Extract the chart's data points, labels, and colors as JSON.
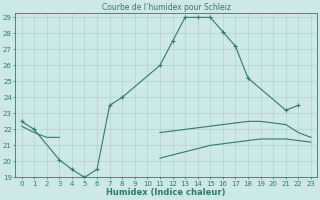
{
  "title": "Courbe de l’humidex pour Schleiz",
  "xlabel": "Humidex (Indice chaleur)",
  "line_color": "#2d7a6e",
  "bg_color": "#cce8e8",
  "grid_color": "#aacece",
  "ylim": [
    19,
    29
  ],
  "ytick_min": 19,
  "ytick_max": 29,
  "main_x": [
    0,
    1,
    3,
    4,
    5,
    6,
    7,
    8,
    11,
    12,
    13,
    14,
    15,
    16,
    17,
    18,
    21,
    22
  ],
  "main_y": [
    22.5,
    22.0,
    20.1,
    19.5,
    19.0,
    19.5,
    23.5,
    24.0,
    26.0,
    27.5,
    29.0,
    29.0,
    29.0,
    28.1,
    27.2,
    25.2,
    23.2,
    23.5
  ],
  "upper_x": [
    0,
    1,
    2,
    3,
    4,
    5,
    6,
    7,
    8,
    9,
    10,
    11,
    12,
    13,
    14,
    15,
    16,
    17,
    18,
    19,
    20,
    21,
    22,
    23
  ],
  "upper_y": [
    22.2,
    21.8,
    21.5,
    21.5,
    null,
    null,
    null,
    null,
    null,
    null,
    null,
    21.8,
    21.9,
    22.0,
    22.1,
    22.2,
    22.3,
    22.4,
    22.5,
    22.5,
    22.4,
    22.3,
    21.8,
    21.5
  ],
  "lower_x": [
    2,
    3,
    4,
    5,
    6,
    7,
    8,
    9,
    10,
    11,
    12,
    13,
    14,
    15,
    16,
    17,
    18,
    19,
    20,
    21,
    22,
    23
  ],
  "lower_y": [
    null,
    null,
    null,
    null,
    null,
    null,
    null,
    null,
    null,
    20.2,
    20.4,
    20.6,
    20.8,
    21.0,
    21.1,
    21.2,
    21.3,
    21.4,
    21.4,
    21.4,
    21.3,
    21.2
  ]
}
